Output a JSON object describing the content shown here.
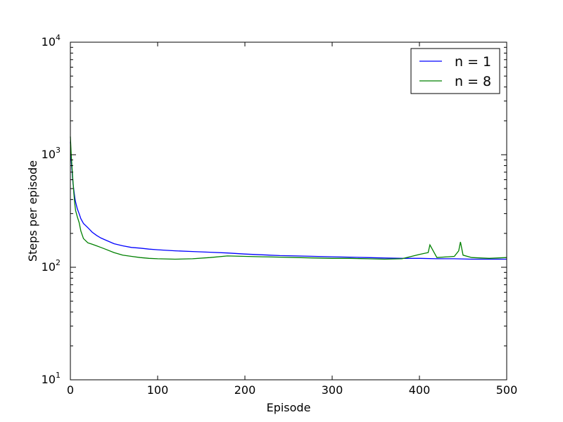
{
  "chart_data": {
    "type": "line",
    "xlabel": "Episode",
    "ylabel": "Steps per episode",
    "xlim": [
      0,
      500
    ],
    "ylim": [
      10,
      10000
    ],
    "yscale": "log",
    "grid": false,
    "legend_position": "top-right",
    "x_ticks": [
      {
        "value": 0,
        "label": "0"
      },
      {
        "value": 100,
        "label": "100"
      },
      {
        "value": 200,
        "label": "200"
      },
      {
        "value": 300,
        "label": "300"
      },
      {
        "value": 400,
        "label": "400"
      },
      {
        "value": 500,
        "label": "500"
      }
    ],
    "y_ticks": [
      {
        "value": 10,
        "base": "10",
        "exp": "1"
      },
      {
        "value": 100,
        "base": "10",
        "exp": "2"
      },
      {
        "value": 1000,
        "base": "10",
        "exp": "3"
      },
      {
        "value": 10000,
        "base": "10",
        "exp": "4"
      }
    ],
    "series": [
      {
        "name": "n = 1",
        "color": "#0000ff",
        "x": [
          0,
          1,
          2,
          3,
          4,
          5,
          6,
          8,
          10,
          12,
          15,
          20,
          25,
          30,
          35,
          40,
          50,
          60,
          70,
          80,
          90,
          100,
          120,
          140,
          160,
          180,
          200,
          220,
          240,
          260,
          280,
          300,
          320,
          340,
          360,
          380,
          400,
          420,
          440,
          460,
          480,
          500
        ],
        "y": [
          1300,
          900,
          700,
          560,
          480,
          420,
          380,
          330,
          300,
          270,
          245,
          225,
          205,
          192,
          182,
          175,
          162,
          155,
          150,
          148,
          145,
          143,
          140,
          138,
          136,
          134,
          131,
          129,
          127,
          126,
          125,
          124,
          123,
          122,
          121,
          120,
          120,
          119,
          119,
          118,
          118,
          118
        ]
      },
      {
        "name": "n = 8",
        "color": "#008000",
        "x": [
          0,
          1,
          2,
          3,
          4,
          5,
          6,
          8,
          10,
          12,
          15,
          20,
          25,
          30,
          35,
          40,
          50,
          60,
          70,
          80,
          90,
          100,
          120,
          140,
          160,
          180,
          200,
          220,
          240,
          260,
          280,
          300,
          320,
          340,
          360,
          380,
          400,
          410,
          412,
          420,
          440,
          445,
          447,
          450,
          460,
          480,
          500
        ],
        "y": [
          1450,
          1000,
          750,
          580,
          450,
          370,
          320,
          280,
          250,
          210,
          180,
          165,
          160,
          155,
          150,
          145,
          135,
          128,
          125,
          122,
          120,
          119,
          118,
          119,
          122,
          126,
          125,
          124,
          123,
          122,
          121,
          120,
          120,
          119,
          118,
          119,
          130,
          135,
          158,
          122,
          125,
          140,
          168,
          128,
          122,
          120,
          122
        ]
      }
    ]
  }
}
